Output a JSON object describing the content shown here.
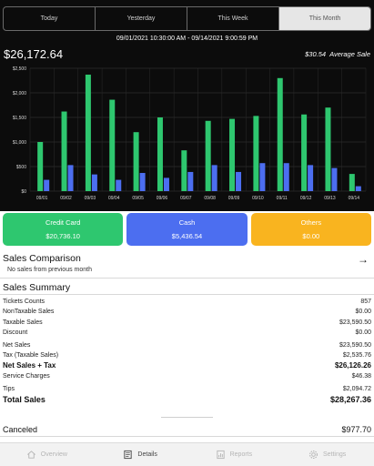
{
  "tabs": [
    {
      "label": "Today"
    },
    {
      "label": "Yesterday"
    },
    {
      "label": "This Week"
    },
    {
      "label": "This Month",
      "active": true
    }
  ],
  "date_range": "09/01/2021 10:30:00 AM - 09/14/2021 9:00:59 PM",
  "total": "$26,172.64",
  "average": {
    "value": "$30.54",
    "label": "Average Sale"
  },
  "colors": {
    "green": "#2ec76f",
    "blue": "#4c6ef0",
    "orange": "#f9b41f"
  },
  "chart_data": {
    "type": "bar",
    "categories": [
      "09/01",
      "09/02",
      "09/03",
      "09/04",
      "09/05",
      "09/06",
      "09/07",
      "09/08",
      "09/09",
      "09/10",
      "09/11",
      "09/12",
      "09/13",
      "09/14"
    ],
    "series": [
      {
        "values": [
          1000,
          1620,
          2370,
          1860,
          1200,
          1500,
          830,
          1430,
          1470,
          1530,
          2300,
          1560,
          1700,
          350
        ],
        "color": "#2ec76f"
      },
      {
        "values": [
          230,
          530,
          340,
          230,
          370,
          270,
          390,
          530,
          390,
          570,
          570,
          530,
          470,
          100
        ],
        "color": "#4c6ef0"
      }
    ],
    "yticks": [
      "$0",
      "$500",
      "$1,000",
      "$1,500",
      "$2,000",
      "$2,500"
    ],
    "ylim": [
      0,
      2500
    ],
    "grid": true
  },
  "cards": [
    {
      "label": "Credit Card",
      "value": "$20,736.10",
      "color": "#2ec76f"
    },
    {
      "label": "Cash",
      "value": "$5,436.54",
      "color": "#4c6ef0"
    },
    {
      "label": "Others",
      "value": "$0.00",
      "color": "#f9b41f"
    }
  ],
  "comparison": {
    "title": "Sales Comparison",
    "subtitle": "No sales from previous month",
    "arrow_icon": "arrow-right-icon"
  },
  "summary": {
    "title": "Sales Summary",
    "rows": [
      {
        "label": "Tickets Counts",
        "value": "857"
      },
      {
        "label": "NonTaxable Sales",
        "value": "$0.00"
      },
      {
        "label": "Taxable Sales",
        "value": "$23,590.50"
      },
      {
        "label": "Discount",
        "value": "$0.00"
      },
      {
        "label": "Net Sales",
        "value": "$23,590.50"
      },
      {
        "label": "Tax (Taxable Sales)",
        "value": "$2,535.76"
      },
      {
        "label": "Net Sales + Tax",
        "value": "$26,126.26",
        "style": "bold"
      },
      {
        "label": "Service Charges",
        "value": "$46.38"
      },
      {
        "label": "Tips",
        "value": "$2,094.72"
      },
      {
        "label": "Total Sales",
        "value": "$28,267.36",
        "style": "big"
      }
    ]
  },
  "canceled": {
    "label": "Canceled",
    "value": "$977.70"
  },
  "nav": [
    {
      "label": "Overview",
      "icon": "home-icon"
    },
    {
      "label": "Details",
      "icon": "details-icon",
      "active": true
    },
    {
      "label": "Reports",
      "icon": "reports-icon"
    },
    {
      "label": "Settings",
      "icon": "settings-icon"
    }
  ]
}
